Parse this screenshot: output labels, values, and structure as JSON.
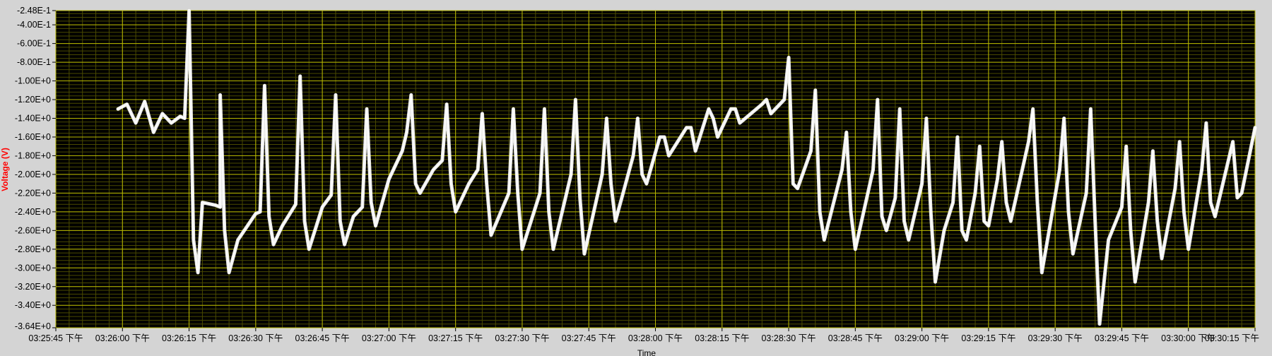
{
  "chart_data": {
    "type": "line",
    "title": "",
    "xlabel": "Time",
    "ylabel": "Voltage (V)",
    "colors": {
      "plot_background": "#000000",
      "major_grid": "#b8b800",
      "minor_grid": "#4a4a00",
      "trace": "#ffffff",
      "frame": "#d4d4d4"
    },
    "grid": true,
    "x_range": [
      "03:25:45 下午",
      "03:30:15 下午"
    ],
    "ylim": [
      -3.64,
      -0.248
    ],
    "x_tick_labels": [
      "03:25:45 下午",
      "03:26:00 下午",
      "03:26:15 下午",
      "03:26:30 下午",
      "03:26:45 下午",
      "03:27:00 下午",
      "03:27:15 下午",
      "03:27:30 下午",
      "03:27:45 下午",
      "03:28:00 下午",
      "03:28:15 下午",
      "03:28:30 下午",
      "03:28:45 下午",
      "03:29:00 下午",
      "03:29:15 下午",
      "03:29:30 下午",
      "03:29:45 下午",
      "03:30:00 下午",
      "03:30:15 下午"
    ],
    "y_tick_labels": [
      "-2.48E-1",
      "-4.00E-1",
      "-6.00E-1",
      "-8.00E-1",
      "-1.00E+0",
      "-1.20E+0",
      "-1.40E+0",
      "-1.60E+0",
      "-1.80E+0",
      "-2.00E+0",
      "-2.20E+0",
      "-2.40E+0",
      "-2.60E+0",
      "-2.80E+0",
      "-3.00E+0",
      "-3.20E+0",
      "-3.40E+0",
      "-3.64E+0"
    ],
    "series": [
      {
        "values": [
          [
            "03:25:59 下午",
            -1.3
          ],
          [
            "03:26:01 下午",
            -1.25
          ],
          [
            "03:26:03 下午",
            -1.45
          ],
          [
            "03:26:05 下午",
            -1.22
          ],
          [
            "03:26:07 下午",
            -1.55
          ],
          [
            "03:26:09 下午",
            -1.35
          ],
          [
            "03:26:11 下午",
            -1.45
          ],
          [
            "03:26:13 下午",
            -1.38
          ],
          [
            "03:26:14 下午",
            -1.4
          ],
          [
            "03:26:15 下午",
            -0.25
          ],
          [
            "03:26:16 下午",
            -2.7
          ],
          [
            "03:26:17 下午",
            -3.05
          ],
          [
            "03:26:18 下午",
            -2.3
          ],
          [
            "03:26:21 下午",
            -2.33
          ],
          [
            "03:26:22 下午",
            -2.35
          ],
          [
            "03:26:22 下午",
            -1.15
          ],
          [
            "03:26:23 下午",
            -2.6
          ],
          [
            "03:26:24 下午",
            -3.05
          ],
          [
            "03:26:26 下午",
            -2.7
          ],
          [
            "03:26:30 下午",
            -2.42
          ],
          [
            "03:26:31 下午",
            -2.4
          ],
          [
            "03:26:32 下午",
            -1.05
          ],
          [
            "03:26:33 下午",
            -2.45
          ],
          [
            "03:26:34 下午",
            -2.75
          ],
          [
            "03:26:36 下午",
            -2.55
          ],
          [
            "03:26:39 下午",
            -2.32
          ],
          [
            "03:26:40 下午",
            -0.95
          ],
          [
            "03:26:41 下午",
            -2.5
          ],
          [
            "03:26:42 下午",
            -2.8
          ],
          [
            "03:26:45 下午",
            -2.35
          ],
          [
            "03:26:47 下午",
            -2.22
          ],
          [
            "03:26:48 下午",
            -1.15
          ],
          [
            "03:26:49 下午",
            -2.5
          ],
          [
            "03:26:50 下午",
            -2.75
          ],
          [
            "03:26:52 下午",
            -2.45
          ],
          [
            "03:26:54 下午",
            -2.35
          ],
          [
            "03:26:55 下午",
            -1.3
          ],
          [
            "03:26:56 下午",
            -2.3
          ],
          [
            "03:26:57 下午",
            -2.55
          ],
          [
            "03:27:00 下午",
            -2.05
          ],
          [
            "03:27:03 下午",
            -1.75
          ],
          [
            "03:27:04 下午",
            -1.55
          ],
          [
            "03:27:05 下午",
            -1.15
          ],
          [
            "03:27:06 下午",
            -2.1
          ],
          [
            "03:27:07 下午",
            -2.2
          ],
          [
            "03:27:10 下午",
            -1.95
          ],
          [
            "03:27:12 下午",
            -1.85
          ],
          [
            "03:27:13 下午",
            -1.25
          ],
          [
            "03:27:14 下午",
            -2.1
          ],
          [
            "03:27:15 下午",
            -2.4
          ],
          [
            "03:27:18 下午",
            -2.1
          ],
          [
            "03:27:20 下午",
            -1.95
          ],
          [
            "03:27:21 下午",
            -1.35
          ],
          [
            "03:27:22 下午",
            -2.1
          ],
          [
            "03:27:23 下午",
            -2.65
          ],
          [
            "03:27:27 下午",
            -2.2
          ],
          [
            "03:27:28 下午",
            -1.3
          ],
          [
            "03:27:29 下午",
            -2.2
          ],
          [
            "03:27:30 下午",
            -2.8
          ],
          [
            "03:27:34 下午",
            -2.2
          ],
          [
            "03:27:35 下午",
            -1.3
          ],
          [
            "03:27:36 下午",
            -2.4
          ],
          [
            "03:27:37 下午",
            -2.8
          ],
          [
            "03:27:41 下午",
            -2.0
          ],
          [
            "03:27:42 下午",
            -1.2
          ],
          [
            "03:27:43 下午",
            -2.25
          ],
          [
            "03:27:44 下午",
            -2.85
          ],
          [
            "03:27:48 下午",
            -2.0
          ],
          [
            "03:27:49 下午",
            -1.4
          ],
          [
            "03:27:50 下午",
            -2.1
          ],
          [
            "03:27:51 下午",
            -2.5
          ],
          [
            "03:27:55 下午",
            -1.8
          ],
          [
            "03:27:56 下午",
            -1.4
          ],
          [
            "03:27:57 下午",
            -2.0
          ],
          [
            "03:27:58 下午",
            -2.1
          ],
          [
            "03:28:01 下午",
            -1.6
          ],
          [
            "03:28:02 下午",
            -1.6
          ],
          [
            "03:28:03 下午",
            -1.8
          ],
          [
            "03:28:07 下午",
            -1.5
          ],
          [
            "03:28:08 下午",
            -1.5
          ],
          [
            "03:28:09 下午",
            -1.75
          ],
          [
            "03:28:12 下午",
            -1.3
          ],
          [
            "03:28:13 下午",
            -1.4
          ],
          [
            "03:28:14 下午",
            -1.6
          ],
          [
            "03:28:17 下午",
            -1.3
          ],
          [
            "03:28:18 下午",
            -1.3
          ],
          [
            "03:28:19 下午",
            -1.45
          ],
          [
            "03:28:24 下午",
            -1.25
          ],
          [
            "03:28:25 下午",
            -1.2
          ],
          [
            "03:28:26 下午",
            -1.35
          ],
          [
            "03:28:29 下午",
            -1.2
          ],
          [
            "03:28:30 下午",
            -0.75
          ],
          [
            "03:28:31 下午",
            -2.1
          ],
          [
            "03:28:32 下午",
            -2.15
          ],
          [
            "03:28:35 下午",
            -1.75
          ],
          [
            "03:28:36 下午",
            -1.1
          ],
          [
            "03:28:37 下午",
            -2.4
          ],
          [
            "03:28:38 下午",
            -2.7
          ],
          [
            "03:28:42 下午",
            -1.95
          ],
          [
            "03:28:43 下午",
            -1.55
          ],
          [
            "03:28:44 下午",
            -2.4
          ],
          [
            "03:28:45 下午",
            -2.8
          ],
          [
            "03:28:49 下午",
            -1.95
          ],
          [
            "03:28:50 下午",
            -1.2
          ],
          [
            "03:28:51 下午",
            -2.45
          ],
          [
            "03:28:52 下午",
            -2.6
          ],
          [
            "03:28:54 下午",
            -2.25
          ],
          [
            "03:28:55 下午",
            -1.3
          ],
          [
            "03:28:56 下午",
            -2.5
          ],
          [
            "03:28:57 下午",
            -2.7
          ],
          [
            "03:29:00 下午",
            -2.1
          ],
          [
            "03:29:01 下午",
            -1.4
          ],
          [
            "03:29:02 下午",
            -2.4
          ],
          [
            "03:29:03 下午",
            -3.15
          ],
          [
            "03:29:05 下午",
            -2.6
          ],
          [
            "03:29:07 下午",
            -2.3
          ],
          [
            "03:29:08 下午",
            -1.6
          ],
          [
            "03:29:09 下午",
            -2.6
          ],
          [
            "03:29:10 下午",
            -2.7
          ],
          [
            "03:29:12 下午",
            -2.2
          ],
          [
            "03:29:13 下午",
            -1.7
          ],
          [
            "03:29:14 下午",
            -2.5
          ],
          [
            "03:29:15 下午",
            -2.55
          ],
          [
            "03:29:17 下午",
            -2.05
          ],
          [
            "03:29:18 下午",
            -1.65
          ],
          [
            "03:29:19 下午",
            -2.3
          ],
          [
            "03:29:20 下午",
            -2.5
          ],
          [
            "03:29:24 下午",
            -1.65
          ],
          [
            "03:29:25 下午",
            -1.3
          ],
          [
            "03:29:26 下午",
            -2.3
          ],
          [
            "03:29:27 下午",
            -3.05
          ],
          [
            "03:29:31 下午",
            -1.95
          ],
          [
            "03:29:32 下午",
            -1.4
          ],
          [
            "03:29:33 下午",
            -2.4
          ],
          [
            "03:29:34 下午",
            -2.85
          ],
          [
            "03:29:37 下午",
            -2.2
          ],
          [
            "03:29:38 下午",
            -1.3
          ],
          [
            "03:29:39 下午",
            -2.5
          ],
          [
            "03:29:40 下午",
            -3.6
          ],
          [
            "03:29:42 下午",
            -2.7
          ],
          [
            "03:29:45 下午",
            -2.35
          ],
          [
            "03:29:46 下午",
            -1.7
          ],
          [
            "03:29:47 下午",
            -2.6
          ],
          [
            "03:29:48 下午",
            -3.15
          ],
          [
            "03:29:51 下午",
            -2.3
          ],
          [
            "03:29:52 下午",
            -1.75
          ],
          [
            "03:29:53 下午",
            -2.5
          ],
          [
            "03:29:54 下午",
            -2.9
          ],
          [
            "03:29:57 下午",
            -2.15
          ],
          [
            "03:29:58 下午",
            -1.65
          ],
          [
            "03:29:59 下午",
            -2.4
          ],
          [
            "03:30:00 下午",
            -2.8
          ],
          [
            "03:30:03 下午",
            -1.95
          ],
          [
            "03:30:04 下午",
            -1.45
          ],
          [
            "03:30:05 下午",
            -2.3
          ],
          [
            "03:30:06 下午",
            -2.45
          ],
          [
            "03:30:09 下午",
            -1.85
          ],
          [
            "03:30:10 下午",
            -1.65
          ],
          [
            "03:30:11 下午",
            -2.25
          ],
          [
            "03:30:12 下午",
            -2.2
          ],
          [
            "03:30:15 下午",
            -1.5
          ]
        ]
      }
    ]
  }
}
